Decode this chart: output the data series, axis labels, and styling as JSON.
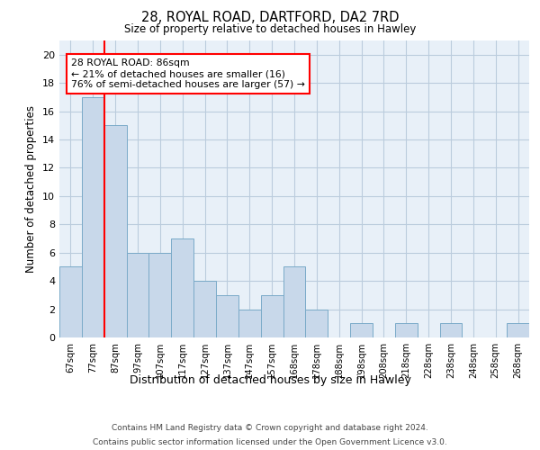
{
  "title_line1": "28, ROYAL ROAD, DARTFORD, DA2 7RD",
  "title_line2": "Size of property relative to detached houses in Hawley",
  "xlabel": "Distribution of detached houses by size in Hawley",
  "ylabel": "Number of detached properties",
  "categories": [
    "67sqm",
    "77sqm",
    "87sqm",
    "97sqm",
    "107sqm",
    "117sqm",
    "127sqm",
    "137sqm",
    "147sqm",
    "157sqm",
    "168sqm",
    "178sqm",
    "188sqm",
    "198sqm",
    "208sqm",
    "218sqm",
    "228sqm",
    "238sqm",
    "248sqm",
    "258sqm",
    "268sqm"
  ],
  "values": [
    5,
    17,
    15,
    6,
    6,
    7,
    4,
    3,
    2,
    3,
    5,
    2,
    0,
    1,
    0,
    1,
    0,
    1,
    0,
    0,
    1
  ],
  "bar_color": "#c8d8ea",
  "bar_edge_color": "#7aaac8",
  "bar_edge_width": 0.7,
  "grid_color": "#bbccdd",
  "background_color": "#e8f0f8",
  "red_line_x": 1.5,
  "annotation_text": "28 ROYAL ROAD: 86sqm\n← 21% of detached houses are smaller (16)\n76% of semi-detached houses are larger (57) →",
  "annotation_box_color": "white",
  "annotation_box_edge_color": "red",
  "ylim": [
    0,
    21
  ],
  "yticks": [
    0,
    2,
    4,
    6,
    8,
    10,
    12,
    14,
    16,
    18,
    20
  ],
  "footer_line1": "Contains HM Land Registry data © Crown copyright and database right 2024.",
  "footer_line2": "Contains public sector information licensed under the Open Government Licence v3.0."
}
